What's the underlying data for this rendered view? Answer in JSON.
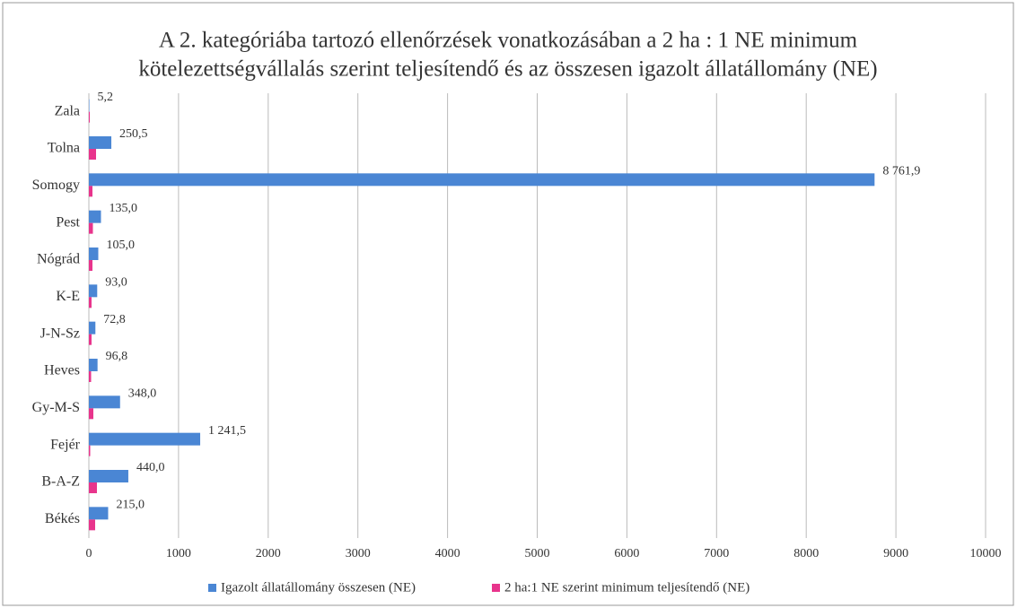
{
  "chart_data": {
    "type": "hbar",
    "title": [
      "A 2. kategóriába tartozó ellenőrzések vonatkozásában a 2 ha : 1 NE  minimum",
      "kötelezettségvállalás szerint teljesítendő és az összesen igazolt állatállomány (NE)"
    ],
    "categories": [
      "Zala",
      "Tolna",
      "Somogy",
      "Pest",
      "Nógrád",
      "K-E",
      "J-N-Sz",
      "Heves",
      "Gy-M-S",
      "Fejér",
      "B-A-Z",
      "Békés"
    ],
    "series": [
      {
        "name": "Igazolt állatállomány összesen (NE)",
        "color": "#4a86d4",
        "values": [
          5.2,
          250.5,
          8761.9,
          135.0,
          105.0,
          93.0,
          72.8,
          96.8,
          348.0,
          1241.5,
          440.0,
          215.0
        ],
        "value_labels": [
          "5,2",
          "250,5",
          "8 761,9",
          "135,0",
          "105,0",
          "93,0",
          "72,8",
          "96,8",
          "348,0",
          "1 241,5",
          "440,0",
          "215,0"
        ]
      },
      {
        "name": "2 ha:1 NE szerint minimum teljesítendő (NE)",
        "color": "#e8348c",
        "values": [
          10,
          80,
          40,
          45,
          40,
          30,
          30,
          25,
          50,
          15,
          90,
          70
        ]
      }
    ],
    "xlim": [
      0,
      10000
    ],
    "xticks": [
      0,
      1000,
      2000,
      3000,
      4000,
      5000,
      6000,
      7000,
      8000,
      9000,
      10000
    ],
    "grid": true,
    "legend": "bottom"
  }
}
